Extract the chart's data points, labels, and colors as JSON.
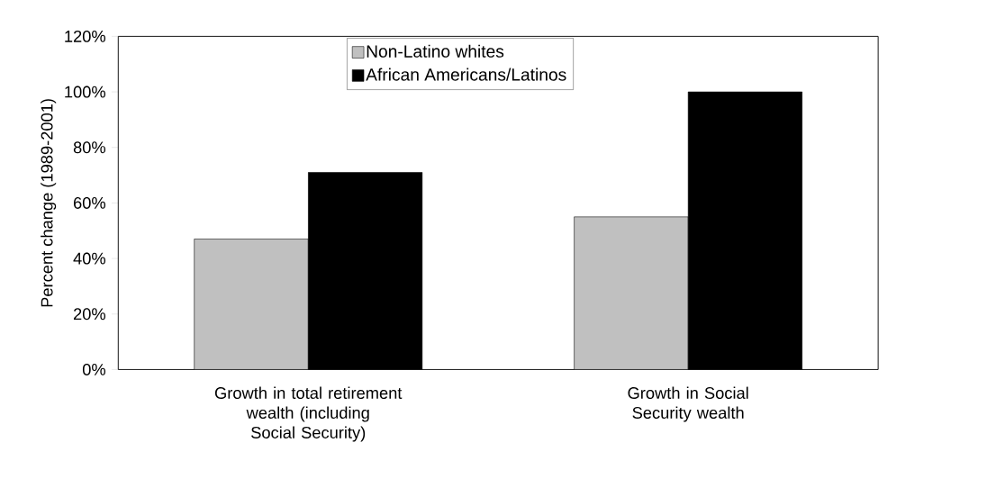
{
  "chart_data": {
    "type": "bar",
    "ylabel": "Percent change (1989-2001)",
    "categories": [
      "Growth in total retirement wealth (including Social Security)",
      "Growth in Social Security wealth"
    ],
    "series": [
      {
        "name": "Non-Latino whites",
        "color": "#c0c0c0",
        "values": [
          47,
          55
        ]
      },
      {
        "name": "African Americans/Latinos",
        "color": "#000000",
        "values": [
          71,
          100
        ]
      }
    ],
    "ylim": [
      0,
      120
    ],
    "yticks": [
      {
        "value": 0,
        "label": "0%"
      },
      {
        "value": 20,
        "label": "20%"
      },
      {
        "value": 40,
        "label": "40%"
      },
      {
        "value": 60,
        "label": "60%"
      },
      {
        "value": 80,
        "label": "80%"
      },
      {
        "value": 100,
        "label": "100%"
      },
      {
        "value": 120,
        "label": "120%"
      }
    ],
    "grid": false,
    "legend": "top"
  }
}
